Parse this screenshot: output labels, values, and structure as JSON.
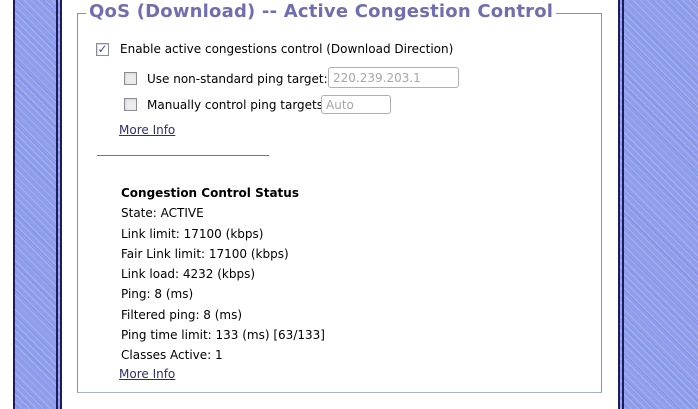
{
  "page": {
    "title": "QoS (Download) -- Active Congestion Control"
  },
  "form": {
    "enable": {
      "label": "Enable active congestions control (Download Direction)",
      "checked": true,
      "check_glyph": "✓"
    },
    "ping_target": {
      "label": "Use non-standard ping target:",
      "checked": false,
      "value": "220.239.203.1"
    },
    "manual_targets": {
      "label": "Manually control ping targets:",
      "checked": false,
      "value": "Auto"
    },
    "more_info_label": "More Info"
  },
  "status": {
    "heading": "Congestion Control Status",
    "lines": [
      "State: ACTIVE",
      "Link limit: 17100 (kbps)",
      "Fair Link limit: 17100 (kbps)",
      "Link load: 4232 (kbps)",
      "Ping: 8 (ms)",
      "Filtered ping: 8 (ms)",
      "Ping time limit: 133 (ms) [63/133]",
      "Classes Active: 1"
    ],
    "more_info_label": "More Info"
  },
  "colors": {
    "sidebar_blue": "#8e9eea",
    "sidebar_border_navy": "#1c1c5e",
    "title_purple": "#6f6fb0",
    "link_navy": "#2e2e6e",
    "panel_border_gray": "#90909a",
    "disabled_text_gray": "#a6a6a6",
    "checkmark_blue": "#3a4fae"
  }
}
